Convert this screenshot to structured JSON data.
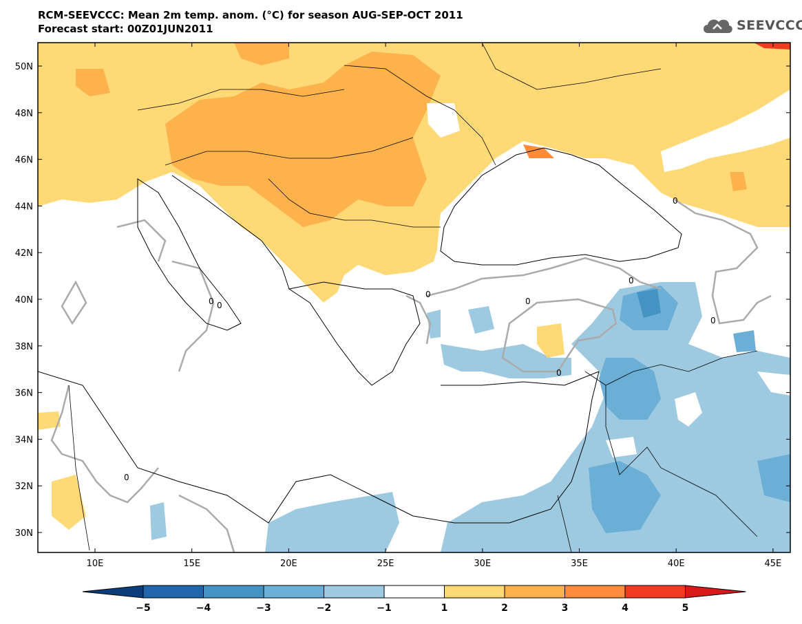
{
  "header": {
    "title": "RCM-SEEVCCC: Mean 2m temp. anom. (°C) for season AUG-SEP-OCT 2011",
    "subtitle": "Forecast start: 00Z01JUN2011"
  },
  "logo": {
    "text": "SEEVCCC",
    "icon": "cloud-icon"
  },
  "map": {
    "lat_labels": [
      "50N",
      "48N",
      "46N",
      "44N",
      "42N",
      "40N",
      "38N",
      "36N",
      "34N",
      "32N",
      "30N"
    ],
    "lon_labels": [
      "10E",
      "15E",
      "20E",
      "25E",
      "30E",
      "35E",
      "40E",
      "45E"
    ],
    "contour_labels": [
      "0",
      "0",
      "0",
      "0",
      "0",
      "0",
      "0",
      "0",
      "0"
    ]
  },
  "colorbar": {
    "ticks": [
      "−5",
      "−4",
      "−3",
      "−2",
      "−1",
      "1",
      "2",
      "3",
      "4",
      "5"
    ],
    "colors": [
      "#0a3d7a",
      "#2166ac",
      "#4393c3",
      "#6baed6",
      "#9ecae1",
      "#ffffff",
      "#fed976",
      "#feb24c",
      "#fd8d3c",
      "#f03b20",
      "#d7191c"
    ]
  }
}
